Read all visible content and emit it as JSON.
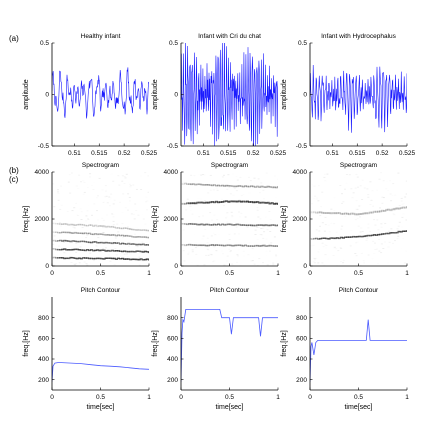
{
  "panel_labels": {
    "a": "(a)",
    "b": "(b)",
    "c": "(c)"
  },
  "colors": {
    "signal": "#1a1aff",
    "contour": "#4a5aff",
    "axis": "#000000",
    "spectro_dark": "#2a2a2a"
  },
  "chart_data": [
    {
      "type": "line",
      "row": "waveform",
      "title": "Healthy infant",
      "xlabel": "",
      "ylabel": "amplitude",
      "xlim": [
        0.5055,
        0.525
      ],
      "ylim": [
        -0.5,
        0.5
      ],
      "xticks": [
        "0.51",
        "0.515",
        "0.52",
        "0.525"
      ],
      "yticks": [
        "-0.5",
        "0",
        "0.5"
      ],
      "signal": {
        "amplitude": 0.18,
        "cycles": 13,
        "noise": 0.05
      }
    },
    {
      "type": "line",
      "row": "waveform",
      "title": "Infant with Cri du chat",
      "xlabel": "",
      "ylabel": "amplitude",
      "xlim": [
        0.5055,
        0.525
      ],
      "ylim": [
        -0.5,
        0.5
      ],
      "xticks": [
        "0.51",
        "0.515",
        "0.52",
        "0.525"
      ],
      "yticks": [
        "-0.5",
        "0",
        "0.5"
      ],
      "signal": {
        "amplitude": 0.42,
        "cycles": 45,
        "noise": 0.08
      }
    },
    {
      "type": "line",
      "row": "waveform",
      "title": "Infant with Hydrocephalus",
      "xlabel": "",
      "ylabel": "amplitude",
      "xlim": [
        0.5055,
        0.525
      ],
      "ylim": [
        -0.5,
        0.5
      ],
      "xticks": [
        "0.51",
        "0.515",
        "0.52",
        "0.525"
      ],
      "yticks": [
        "-0.5",
        "0",
        "0.5"
      ],
      "signal": {
        "amplitude": 0.2,
        "cycles": 32,
        "noise": 0.06,
        "ramp": 0.12
      }
    },
    {
      "type": "heatmap",
      "row": "spectrogram",
      "title": "Spectrogram",
      "xlabel": "",
      "ylabel": "freq.[Hz]",
      "xlim": [
        0,
        1
      ],
      "ylim": [
        0,
        4000
      ],
      "xticks": [
        "0",
        "0.5",
        "1"
      ],
      "yticks": [
        "0",
        "2000",
        "4000"
      ],
      "bands": [
        {
          "f": [
            350,
            330,
            320,
            300,
            280
          ],
          "intensity": 0.85,
          "width": 55
        },
        {
          "f": [
            720,
            690,
            660,
            630,
            600
          ],
          "intensity": 0.8,
          "width": 60
        },
        {
          "f": [
            1080,
            1050,
            1000,
            950,
            900
          ],
          "intensity": 0.6,
          "width": 60
        },
        {
          "f": [
            1450,
            1400,
            1350,
            1280,
            1200
          ],
          "intensity": 0.35,
          "width": 60
        },
        {
          "f": [
            1800,
            1750,
            1700,
            1600,
            1500
          ],
          "intensity": 0.2,
          "width": 60
        }
      ]
    },
    {
      "type": "heatmap",
      "row": "spectrogram",
      "title": "Spectrogram",
      "xlabel": "",
      "ylabel": "freq.[Hz]",
      "xlim": [
        0,
        1
      ],
      "ylim": [
        0,
        4000
      ],
      "xticks": [
        "0",
        "0.5",
        "1"
      ],
      "yticks": [
        "0",
        "2000",
        "4000"
      ],
      "bands": [
        {
          "f": [
            900,
            880,
            880,
            860,
            850
          ],
          "intensity": 0.45,
          "width": 70
        },
        {
          "f": [
            1800,
            1760,
            1760,
            1740,
            1720
          ],
          "intensity": 0.55,
          "width": 70
        },
        {
          "f": [
            2650,
            2700,
            2750,
            2720,
            2650
          ],
          "intensity": 0.8,
          "width": 75
        },
        {
          "f": [
            3500,
            3450,
            3400,
            3380,
            3350
          ],
          "intensity": 0.35,
          "width": 70
        }
      ]
    },
    {
      "type": "heatmap",
      "row": "spectrogram",
      "title": "Spectrogram",
      "xlabel": "",
      "ylabel": "freq.[Hz]",
      "xlim": [
        0,
        1
      ],
      "ylim": [
        0,
        4000
      ],
      "xticks": [
        "0",
        "0.5",
        "1"
      ],
      "yticks": [
        "0",
        "2000",
        "4000"
      ],
      "bands": [
        {
          "f": [
            1150,
            1180,
            1250,
            1350,
            1500
          ],
          "intensity": 0.8,
          "width": 65
        },
        {
          "f": [
            2300,
            2250,
            2200,
            2350,
            2500
          ],
          "intensity": 0.25,
          "width": 80
        }
      ]
    },
    {
      "type": "line",
      "row": "pitch",
      "title": "Pitch Contour",
      "xlabel": "time[sec]",
      "ylabel": "freq.[Hz]",
      "xlim": [
        0,
        1
      ],
      "ylim": [
        100,
        1000
      ],
      "xticks": [
        "0",
        "0.5",
        "1"
      ],
      "yticks": [
        "200",
        "400",
        "600",
        "800"
      ],
      "x": [
        0,
        0.01,
        0.03,
        0.06,
        0.1,
        0.2,
        0.3,
        0.4,
        0.5,
        0.6,
        0.7,
        0.8,
        0.9,
        1.0
      ],
      "y": [
        180,
        330,
        360,
        365,
        365,
        360,
        355,
        345,
        335,
        330,
        325,
        315,
        305,
        300
      ]
    },
    {
      "type": "line",
      "row": "pitch",
      "title": "Pitch Contour",
      "xlabel": "time[sec]",
      "ylabel": "freq.[Hz]",
      "xlim": [
        0,
        1
      ],
      "ylim": [
        100,
        1000
      ],
      "xticks": [
        "0",
        "0.5",
        "1"
      ],
      "yticks": [
        "200",
        "400",
        "600",
        "800"
      ],
      "x": [
        0,
        0.01,
        0.02,
        0.03,
        0.05,
        0.07,
        0.1,
        0.4,
        0.42,
        0.5,
        0.52,
        0.54,
        0.56,
        0.8,
        0.82,
        0.84,
        0.86,
        1.0
      ],
      "y": [
        180,
        650,
        780,
        760,
        880,
        880,
        880,
        880,
        800,
        800,
        640,
        800,
        800,
        800,
        620,
        800,
        800,
        800
      ]
    },
    {
      "type": "line",
      "row": "pitch",
      "title": "Pitch Contour",
      "xlabel": "time[sec]",
      "ylabel": "freq.[Hz]",
      "xlim": [
        0,
        1
      ],
      "ylim": [
        100,
        1000
      ],
      "xticks": [
        "0",
        "0.5",
        "1"
      ],
      "yticks": [
        "200",
        "400",
        "600",
        "800"
      ],
      "x": [
        0,
        0.01,
        0.02,
        0.04,
        0.06,
        0.08,
        0.1,
        0.58,
        0.6,
        0.62,
        0.64,
        1.0
      ],
      "y": [
        180,
        520,
        560,
        440,
        560,
        580,
        580,
        580,
        780,
        580,
        580,
        580
      ]
    }
  ]
}
